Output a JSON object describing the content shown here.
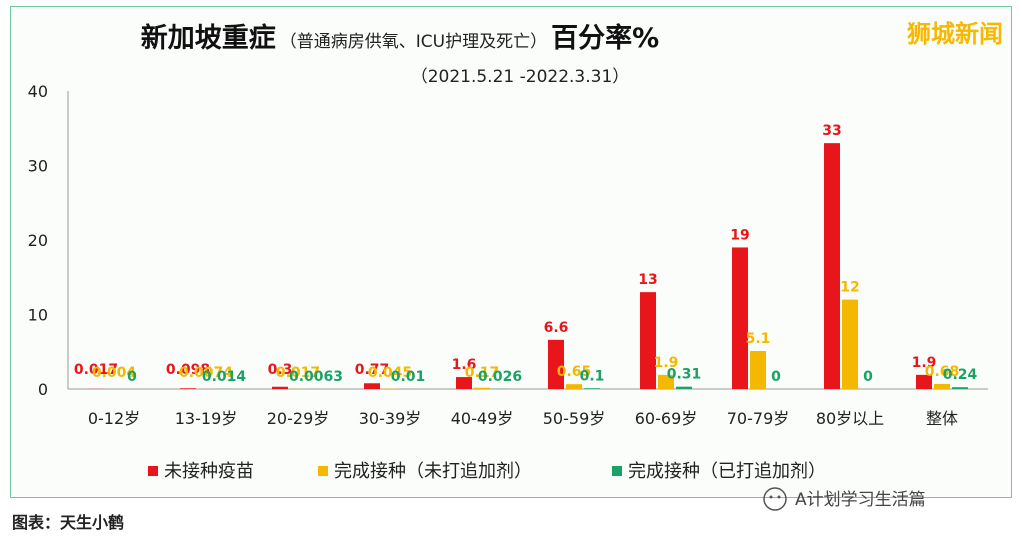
{
  "brand": "狮城新闻",
  "footer": {
    "source_label": "图表：",
    "source_author": "天生小鹤",
    "wechat_account": "A计划学习生活篇"
  },
  "colors": {
    "unvaccinated": "#e8161b",
    "no_booster": "#f5b800",
    "booster": "#1aa266"
  },
  "chart_data": {
    "type": "bar",
    "title": "新加坡重症",
    "title_note": "（普通病房供氧、ICU护理及死亡）",
    "title_suffix": "百分率%",
    "subtitle": "（2021.5.21 -2022.3.31）",
    "categories": [
      "0-12岁",
      "13-19岁",
      "20-29岁",
      "30-39岁",
      "40-49岁",
      "50-59岁",
      "60-69岁",
      "70-79岁",
      "80岁以上",
      "整体"
    ],
    "series": [
      {
        "name": "未接种疫苗",
        "values": [
          0.017,
          0.098,
          0.3,
          0.77,
          1.6,
          6.6,
          13,
          19,
          33,
          1.9
        ],
        "labels": [
          "0.017",
          "0.098",
          "0.3",
          "0.77",
          "1.6",
          "6.6",
          "13",
          "19",
          "33",
          "1.9"
        ]
      },
      {
        "name": "完成接种（未打追加剂）",
        "values": [
          0.004,
          0.0074,
          0.017,
          0.045,
          0.17,
          0.65,
          1.9,
          5.1,
          12,
          0.68
        ],
        "labels": [
          "0.004",
          "0.0074",
          "0.017",
          "0.045",
          "0.17",
          "0.65",
          "1.9",
          "5.1",
          "12",
          "0.68"
        ]
      },
      {
        "name": "完成接种（已打追加剂）",
        "values": [
          0,
          0.014,
          0.0063,
          0.01,
          0.026,
          0.1,
          0.31,
          0,
          0,
          0.24
        ],
        "labels": [
          "0",
          "0.014",
          "0.0063",
          "0.01",
          "0.026",
          "0.1",
          "0.31",
          "0",
          "0",
          "0.24"
        ]
      }
    ],
    "yticks": [
      "0",
      "10",
      "20",
      "30",
      "40"
    ],
    "ylim": [
      0,
      40
    ],
    "grid": false,
    "legend": "bottom"
  }
}
